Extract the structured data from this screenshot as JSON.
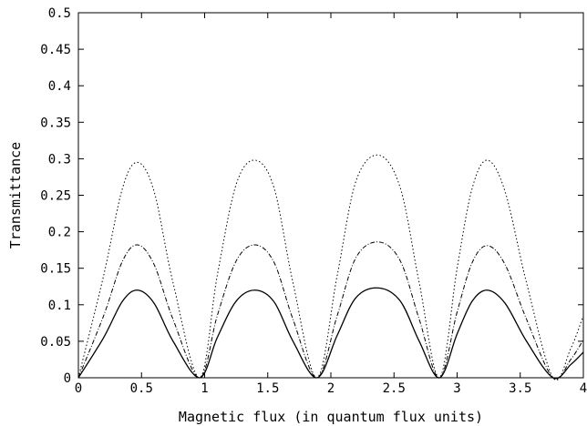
{
  "chart_data": {
    "type": "line",
    "title": "",
    "xlabel": "Magnetic flux (in quantum flux units)",
    "ylabel": "Transmittance",
    "xlim": [
      0,
      4
    ],
    "ylim": [
      0,
      0.5
    ],
    "xticks": [
      "0",
      "0.5",
      "1",
      "1.5",
      "2",
      "2.5",
      "3",
      "3.5",
      "4"
    ],
    "yticks": [
      "0",
      "0.05",
      "0.1",
      "0.15",
      "0.2",
      "0.25",
      "0.3",
      "0.35",
      "0.4",
      "0.45",
      "0.5"
    ],
    "grid": false,
    "legend": "none",
    "series": [
      {
        "style": "dotted",
        "x": [
          0,
          0.2,
          0.35,
          0.47,
          0.6,
          0.75,
          0.96,
          1.1,
          1.25,
          1.4,
          1.55,
          1.7,
          1.89,
          2.05,
          2.2,
          2.38,
          2.55,
          2.7,
          2.86,
          3.0,
          3.12,
          3.24,
          3.38,
          3.55,
          3.76,
          3.9,
          4.0
        ],
        "y": [
          0.0,
          0.14,
          0.26,
          0.295,
          0.255,
          0.13,
          0.0,
          0.14,
          0.265,
          0.298,
          0.26,
          0.13,
          0.0,
          0.14,
          0.27,
          0.305,
          0.26,
          0.13,
          0.0,
          0.15,
          0.26,
          0.298,
          0.255,
          0.13,
          0.0,
          0.04,
          0.085
        ]
      },
      {
        "style": "dashed",
        "x": [
          0,
          0.2,
          0.35,
          0.47,
          0.6,
          0.75,
          0.96,
          1.1,
          1.25,
          1.4,
          1.55,
          1.7,
          1.89,
          2.05,
          2.2,
          2.38,
          2.55,
          2.7,
          2.86,
          3.0,
          3.12,
          3.24,
          3.38,
          3.55,
          3.76,
          3.9,
          4.0
        ],
        "y": [
          0.0,
          0.085,
          0.16,
          0.182,
          0.155,
          0.08,
          0.0,
          0.085,
          0.16,
          0.182,
          0.158,
          0.08,
          0.0,
          0.085,
          0.165,
          0.186,
          0.16,
          0.08,
          0.0,
          0.09,
          0.158,
          0.181,
          0.155,
          0.08,
          0.0,
          0.025,
          0.052
        ]
      },
      {
        "style": "solid",
        "x": [
          0,
          0.2,
          0.35,
          0.47,
          0.6,
          0.75,
          0.96,
          1.1,
          1.25,
          1.4,
          1.55,
          1.7,
          1.89,
          2.05,
          2.2,
          2.38,
          2.55,
          2.7,
          2.86,
          3.0,
          3.12,
          3.24,
          3.38,
          3.55,
          3.76,
          3.9,
          4.0
        ],
        "y": [
          0.0,
          0.055,
          0.105,
          0.12,
          0.102,
          0.05,
          0.0,
          0.055,
          0.105,
          0.12,
          0.104,
          0.05,
          0.0,
          0.058,
          0.11,
          0.123,
          0.105,
          0.05,
          0.0,
          0.06,
          0.105,
          0.12,
          0.102,
          0.05,
          0.0,
          0.018,
          0.035
        ]
      }
    ]
  }
}
